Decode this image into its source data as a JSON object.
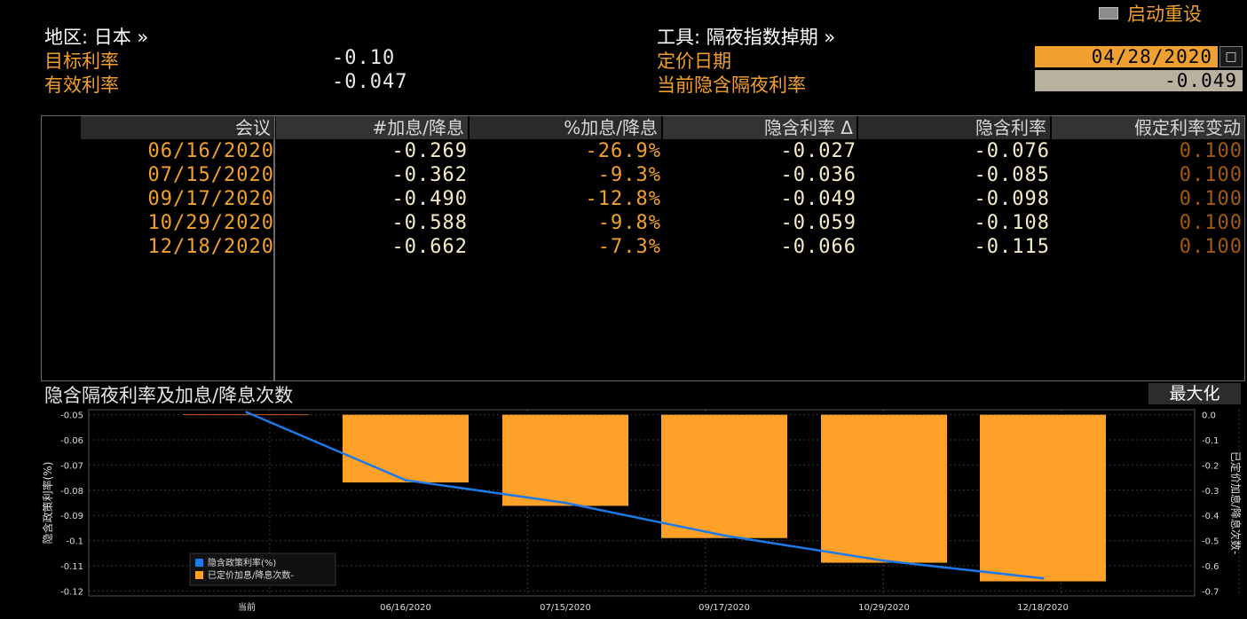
{
  "header": {
    "reset_label": "启动重设",
    "region_label": "地区: 日本 »",
    "tool_label": "工具: 隔夜指数掉期 »",
    "target_rate_label": "目标利率",
    "target_rate_value": "-0.10",
    "effective_rate_label": "有效利率",
    "effective_rate_value": "-0.047",
    "pricing_date_label": "定价日期",
    "pricing_date_value": "04/28/2020",
    "current_implied_label": "当前隐含隔夜利率",
    "current_implied_value": "-0.049",
    "calendar_icon": "calendar-icon"
  },
  "table": {
    "columns": [
      "会议",
      "#加息/降息",
      "%加息/降息",
      "隐含利率 Δ",
      "隐含利率",
      "假定利率变动"
    ],
    "rows": [
      {
        "date": "06/16/2020",
        "hikes": "-0.269",
        "pct": "-26.9%",
        "delta": "-0.027",
        "rate": "-0.076",
        "assumed": "0.100"
      },
      {
        "date": "07/15/2020",
        "hikes": "-0.362",
        "pct": "-9.3%",
        "delta": "-0.036",
        "rate": "-0.085",
        "assumed": "0.100"
      },
      {
        "date": "09/17/2020",
        "hikes": "-0.490",
        "pct": "-12.8%",
        "delta": "-0.049",
        "rate": "-0.098",
        "assumed": "0.100"
      },
      {
        "date": "10/29/2020",
        "hikes": "-0.588",
        "pct": "-9.8%",
        "delta": "-0.059",
        "rate": "-0.108",
        "assumed": "0.100"
      },
      {
        "date": "12/18/2020",
        "hikes": "-0.662",
        "pct": "-7.3%",
        "delta": "-0.066",
        "rate": "-0.115",
        "assumed": "0.100"
      }
    ]
  },
  "chart_section": {
    "title": "隐含隔夜利率及加息/降息次数",
    "maximize_label": "最大化"
  },
  "chart_data": {
    "type": "bar",
    "categories": [
      "当前",
      "06/16/2020",
      "07/15/2020",
      "09/17/2020",
      "10/29/2020",
      "12/18/2020"
    ],
    "series": [
      {
        "name": "隐含政策利率(%)",
        "type": "line",
        "axis": "left",
        "color": "#1e78e6",
        "values": [
          -0.049,
          -0.076,
          -0.085,
          -0.098,
          -0.108,
          -0.115
        ]
      },
      {
        "name": "已定价加息/降息次数-",
        "type": "bar",
        "axis": "right",
        "color": "#ffa028",
        "values": [
          0,
          -0.269,
          -0.362,
          -0.49,
          -0.588,
          -0.662
        ]
      }
    ],
    "ylabel_left": "隐含政策利率(%)",
    "ylabel_right": "已定价加息/降息次数-",
    "yticks_left": [
      "-0.05",
      "-0.06",
      "-0.07",
      "-0.08",
      "-0.09",
      "-0.1",
      "-0.11",
      "-0.12"
    ],
    "ylim_left": [
      -0.122,
      -0.048
    ],
    "yticks_right": [
      "0.0",
      "-0.1",
      "-0.2",
      "-0.3",
      "-0.4",
      "-0.5",
      "-0.6",
      "-0.7"
    ],
    "ylim_right": [
      -0.72,
      0.02
    ],
    "grid": true,
    "legend_position": "bottom-left"
  },
  "colors": {
    "orange": "#f0a030",
    "bar": "#ffa028",
    "line": "#1e78e6"
  }
}
